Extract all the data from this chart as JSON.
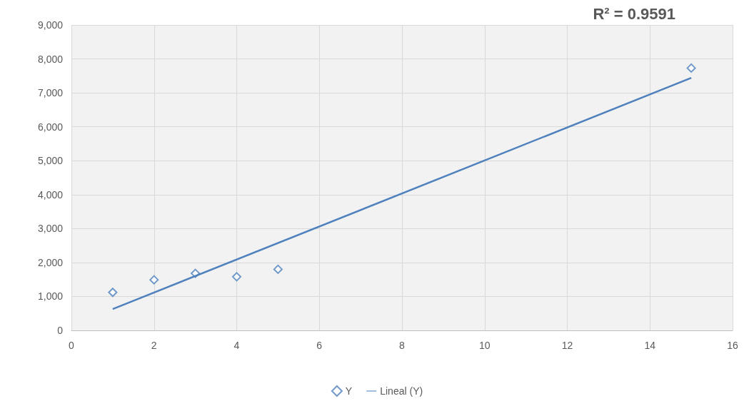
{
  "chart_data": {
    "type": "scatter",
    "series": [
      {
        "name": "Y",
        "color": "#4f81bd",
        "marker": "diamond",
        "x": [
          1,
          2,
          3,
          4,
          5,
          15
        ],
        "values": [
          1120,
          1490,
          1680,
          1580,
          1800,
          7730
        ]
      },
      {
        "name": "Lineal (Y)",
        "type": "line",
        "color": "#4f81bd",
        "marker": "none",
        "x": [
          1,
          15
        ],
        "values": [
          630,
          7440
        ]
      }
    ],
    "xlim": [
      0,
      16
    ],
    "xticks": [
      0,
      2,
      4,
      6,
      8,
      10,
      12,
      14,
      16
    ],
    "ylim": [
      0,
      9000
    ],
    "yticks": [
      0,
      {
        "value": 1000,
        "label": "1,000"
      },
      {
        "value": 2000,
        "label": "2,000"
      },
      {
        "value": 3000,
        "label": "3,000"
      },
      {
        "value": 4000,
        "label": "4,000"
      },
      {
        "value": 5000,
        "label": "5,000"
      },
      {
        "value": 6000,
        "label": "6,000"
      },
      {
        "value": 7000,
        "label": "7,000"
      },
      {
        "value": 8000,
        "label": "8,000"
      },
      {
        "value": 9000,
        "label": "9,000"
      }
    ],
    "grid": true,
    "legend": "bottom",
    "annotations": [
      "R² = 0.9591"
    ]
  }
}
